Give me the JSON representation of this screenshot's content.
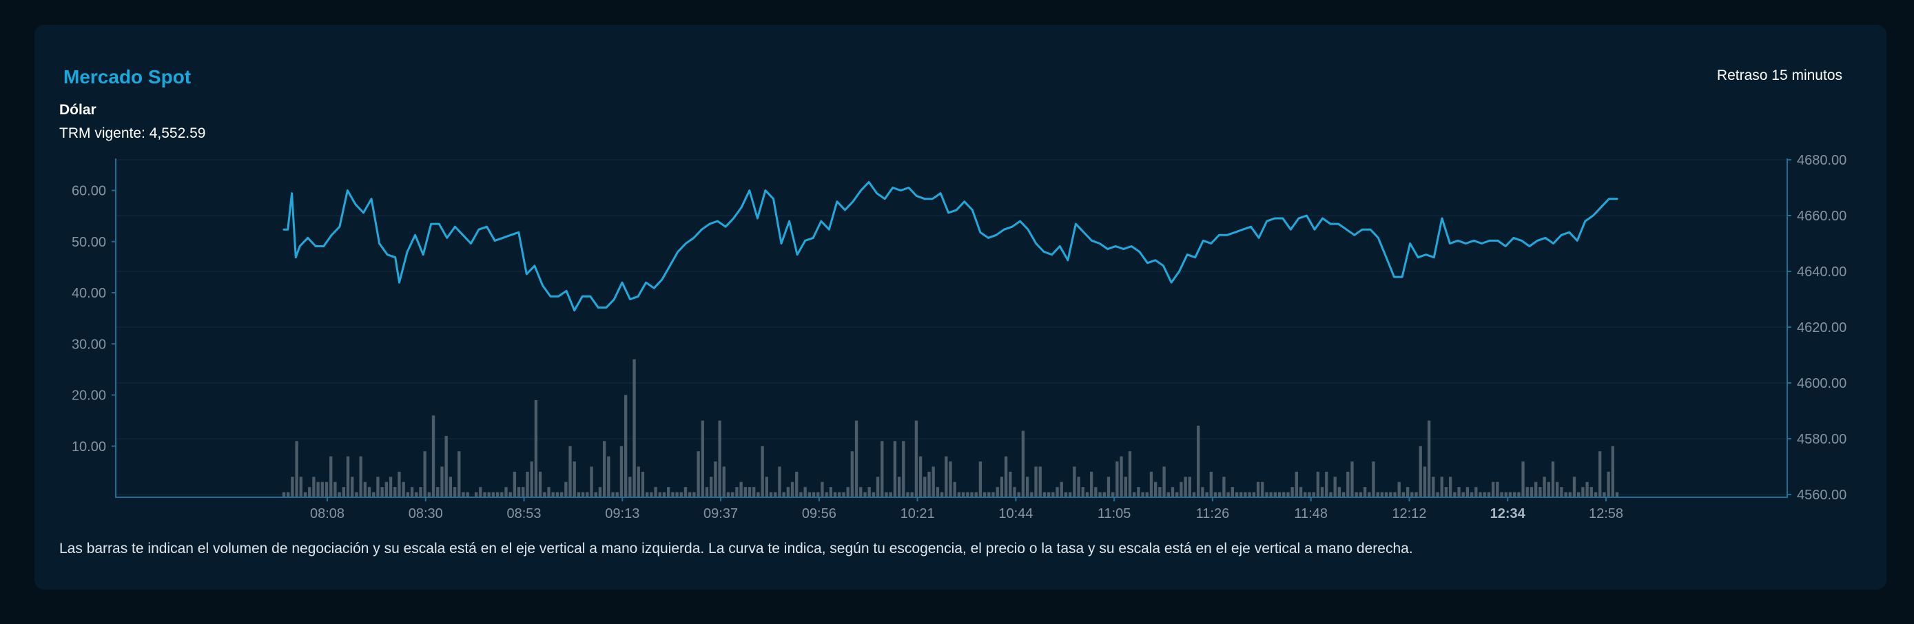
{
  "header": {
    "title": "Mercado Spot",
    "delay": "Retraso 15 minutos",
    "instrument": "Dólar",
    "trm_label": "TRM vigente: 4,552.59"
  },
  "footnote": "Las barras te indican el volumen de negociación y su escala está en el eje vertical a mano izquierda. La curva te indica, según tu escogencia, el precio o la tasa y su escala está en el eje vertical a mano derecha.",
  "colors": {
    "line": "#21a9dc",
    "bars": "#4c5c69",
    "axis": "#1f6f95",
    "grid": "#10283a",
    "tick_text": "#8595a3",
    "title": "#1ba8dc"
  },
  "chart_data": {
    "type": "bar+line",
    "grid": true,
    "left_axis": {
      "range": [
        0,
        66
      ],
      "ticks": [
        "10.00",
        "20.00",
        "30.00",
        "40.00",
        "50.00",
        "60.00"
      ]
    },
    "right_axis": {
      "range": [
        4559,
        4680
      ],
      "ticks": [
        "4560.00",
        "4580.00",
        "4600.00",
        "4620.00",
        "4640.00",
        "4660.00",
        "4680.00"
      ]
    },
    "x_ticks": [
      "08:08",
      "08:30",
      "08:53",
      "09:13",
      "09:37",
      "09:56",
      "10:21",
      "10:44",
      "11:05",
      "11:26",
      "11:48",
      "12:12",
      "12:34",
      "12:58"
    ],
    "highlighted_tick": "12:34",
    "x_range": [
      0,
      335
    ],
    "volume": [
      1,
      1,
      4,
      11,
      4,
      1,
      2,
      4,
      3,
      3,
      3,
      8,
      3,
      1,
      2,
      8,
      4,
      1,
      8,
      3,
      2,
      1,
      4,
      2,
      3,
      4,
      2,
      5,
      3,
      1,
      2,
      1,
      2,
      9,
      1,
      16,
      2,
      6,
      12,
      4,
      2,
      9,
      1,
      1,
      0,
      1,
      2,
      1,
      1,
      1,
      1,
      1,
      2,
      1,
      5,
      2,
      2,
      5,
      7,
      19,
      5,
      1,
      2,
      1,
      1,
      1,
      3,
      10,
      7,
      1,
      1,
      1,
      6,
      1,
      2,
      11,
      8,
      1,
      1,
      10,
      20,
      4,
      27,
      6,
      5,
      1,
      1,
      2,
      1,
      1,
      2,
      1,
      1,
      1,
      2,
      1,
      1,
      9,
      15,
      2,
      4,
      7,
      15,
      6,
      1,
      1,
      2,
      3,
      2,
      2,
      2,
      1,
      10,
      4,
      1,
      1,
      6,
      1,
      2,
      3,
      5,
      1,
      2,
      1,
      1,
      1,
      3,
      1,
      2,
      1,
      1,
      1,
      2,
      9,
      15,
      2,
      1,
      2,
      1,
      4,
      11,
      1,
      1,
      11,
      4,
      11,
      1,
      1,
      15,
      8,
      4,
      5,
      6,
      2,
      1,
      8,
      7,
      3,
      1,
      1,
      1,
      1,
      1,
      7,
      1,
      1,
      1,
      2,
      4,
      8,
      5,
      2,
      1,
      13,
      4,
      1,
      6,
      6,
      1,
      1,
      1,
      2,
      3,
      1,
      1,
      6,
      4,
      2,
      1,
      5,
      2,
      1,
      1,
      4,
      1,
      7,
      8,
      4,
      9,
      1,
      2,
      1,
      1,
      5,
      3,
      2,
      6,
      1,
      2,
      1,
      3,
      4,
      4,
      1,
      14,
      2,
      1,
      5,
      1,
      1,
      4,
      1,
      2,
      1,
      1,
      1,
      1,
      1,
      3,
      3,
      1,
      1,
      1,
      1,
      1,
      1,
      2,
      5,
      2,
      1,
      1,
      1,
      5,
      2,
      5,
      1,
      4,
      2,
      1,
      5,
      7,
      1,
      1,
      2,
      1,
      7,
      1,
      1,
      1,
      1,
      1,
      3,
      1,
      2,
      1,
      1,
      10,
      6,
      15,
      4,
      1,
      4,
      2,
      4,
      1,
      2,
      1,
      2,
      1,
      2,
      1,
      1,
      1,
      3,
      3,
      1,
      1,
      1,
      1,
      1,
      7,
      2,
      2,
      3,
      2,
      4,
      3,
      7,
      3,
      2,
      1,
      1,
      4,
      1,
      2,
      3,
      2,
      1,
      9,
      1,
      5,
      10,
      1
    ],
    "price": [
      [
        0,
        4655
      ],
      [
        1,
        4655
      ],
      [
        2,
        4668
      ],
      [
        3,
        4645
      ],
      [
        4,
        4649
      ],
      [
        6,
        4652
      ],
      [
        8,
        4649
      ],
      [
        10,
        4649
      ],
      [
        12,
        4653
      ],
      [
        14,
        4656
      ],
      [
        16,
        4669
      ],
      [
        18,
        4664
      ],
      [
        20,
        4661
      ],
      [
        22,
        4666
      ],
      [
        24,
        4650
      ],
      [
        26,
        4646
      ],
      [
        28,
        4645
      ],
      [
        29,
        4636
      ],
      [
        31,
        4647
      ],
      [
        33,
        4653
      ],
      [
        35,
        4646
      ],
      [
        37,
        4657
      ],
      [
        39,
        4657
      ],
      [
        41,
        4652
      ],
      [
        43,
        4656
      ],
      [
        45,
        4653
      ],
      [
        47,
        4650
      ],
      [
        49,
        4655
      ],
      [
        51,
        4656
      ],
      [
        53,
        4651
      ],
      [
        55,
        4652
      ],
      [
        57,
        4653
      ],
      [
        59,
        4654
      ],
      [
        61,
        4639
      ],
      [
        63,
        4642
      ],
      [
        65,
        4635
      ],
      [
        67,
        4631
      ],
      [
        69,
        4631
      ],
      [
        71,
        4633
      ],
      [
        73,
        4626
      ],
      [
        75,
        4631
      ],
      [
        77,
        4631
      ],
      [
        79,
        4627
      ],
      [
        81,
        4627
      ],
      [
        83,
        4630
      ],
      [
        85,
        4636
      ],
      [
        87,
        4630
      ],
      [
        89,
        4631
      ],
      [
        91,
        4636
      ],
      [
        93,
        4634
      ],
      [
        95,
        4637
      ],
      [
        97,
        4642
      ],
      [
        99,
        4647
      ],
      [
        101,
        4650
      ],
      [
        103,
        4652
      ],
      [
        105,
        4655
      ],
      [
        107,
        4657
      ],
      [
        109,
        4658
      ],
      [
        111,
        4656
      ],
      [
        113,
        4659
      ],
      [
        115,
        4663
      ],
      [
        117,
        4669
      ],
      [
        119,
        4659
      ],
      [
        121,
        4669
      ],
      [
        123,
        4666
      ],
      [
        125,
        4650
      ],
      [
        127,
        4658
      ],
      [
        129,
        4646
      ],
      [
        131,
        4651
      ],
      [
        133,
        4652
      ],
      [
        135,
        4658
      ],
      [
        137,
        4655
      ],
      [
        139,
        4665
      ],
      [
        141,
        4662
      ],
      [
        143,
        4665
      ],
      [
        145,
        4669
      ],
      [
        147,
        4672
      ],
      [
        149,
        4668
      ],
      [
        151,
        4666
      ],
      [
        153,
        4670
      ],
      [
        155,
        4669
      ],
      [
        157,
        4670
      ],
      [
        159,
        4667
      ],
      [
        161,
        4666
      ],
      [
        163,
        4666
      ],
      [
        165,
        4668
      ],
      [
        167,
        4661
      ],
      [
        169,
        4662
      ],
      [
        171,
        4665
      ],
      [
        173,
        4662
      ],
      [
        175,
        4654
      ],
      [
        177,
        4652
      ],
      [
        179,
        4653
      ],
      [
        181,
        4655
      ],
      [
        183,
        4656
      ],
      [
        185,
        4658
      ],
      [
        187,
        4655
      ],
      [
        189,
        4650
      ],
      [
        191,
        4647
      ],
      [
        193,
        4646
      ],
      [
        195,
        4649
      ],
      [
        197,
        4644
      ],
      [
        199,
        4657
      ],
      [
        201,
        4654
      ],
      [
        203,
        4651
      ],
      [
        205,
        4650
      ],
      [
        207,
        4648
      ],
      [
        209,
        4649
      ],
      [
        211,
        4648
      ],
      [
        213,
        4649
      ],
      [
        215,
        4647
      ],
      [
        217,
        4643
      ],
      [
        219,
        4644
      ],
      [
        221,
        4642
      ],
      [
        223,
        4636
      ],
      [
        225,
        4640
      ],
      [
        227,
        4646
      ],
      [
        229,
        4645
      ],
      [
        231,
        4651
      ],
      [
        233,
        4650
      ],
      [
        235,
        4653
      ],
      [
        237,
        4653
      ],
      [
        239,
        4654
      ],
      [
        241,
        4655
      ],
      [
        243,
        4656
      ],
      [
        245,
        4652
      ],
      [
        247,
        4658
      ],
      [
        249,
        4659
      ],
      [
        251,
        4659
      ],
      [
        253,
        4655
      ],
      [
        255,
        4659
      ],
      [
        257,
        4660
      ],
      [
        259,
        4655
      ],
      [
        261,
        4659
      ],
      [
        263,
        4657
      ],
      [
        265,
        4657
      ],
      [
        267,
        4655
      ],
      [
        269,
        4653
      ],
      [
        271,
        4655
      ],
      [
        273,
        4655
      ],
      [
        275,
        4652
      ],
      [
        277,
        4645
      ],
      [
        279,
        4638
      ],
      [
        281,
        4638
      ],
      [
        283,
        4650
      ],
      [
        285,
        4645
      ],
      [
        287,
        4646
      ],
      [
        289,
        4645
      ],
      [
        291,
        4659
      ],
      [
        293,
        4650
      ],
      [
        295,
        4651
      ],
      [
        297,
        4650
      ],
      [
        299,
        4651
      ],
      [
        301,
        4650
      ],
      [
        303,
        4651
      ],
      [
        305,
        4651
      ],
      [
        307,
        4649
      ],
      [
        309,
        4652
      ],
      [
        311,
        4651
      ],
      [
        313,
        4649
      ],
      [
        315,
        4651
      ],
      [
        317,
        4652
      ],
      [
        319,
        4650
      ],
      [
        321,
        4653
      ],
      [
        323,
        4654
      ],
      [
        325,
        4651
      ],
      [
        327,
        4658
      ],
      [
        329,
        4660
      ],
      [
        331,
        4663
      ],
      [
        333,
        4666
      ],
      [
        335,
        4666
      ]
    ]
  }
}
